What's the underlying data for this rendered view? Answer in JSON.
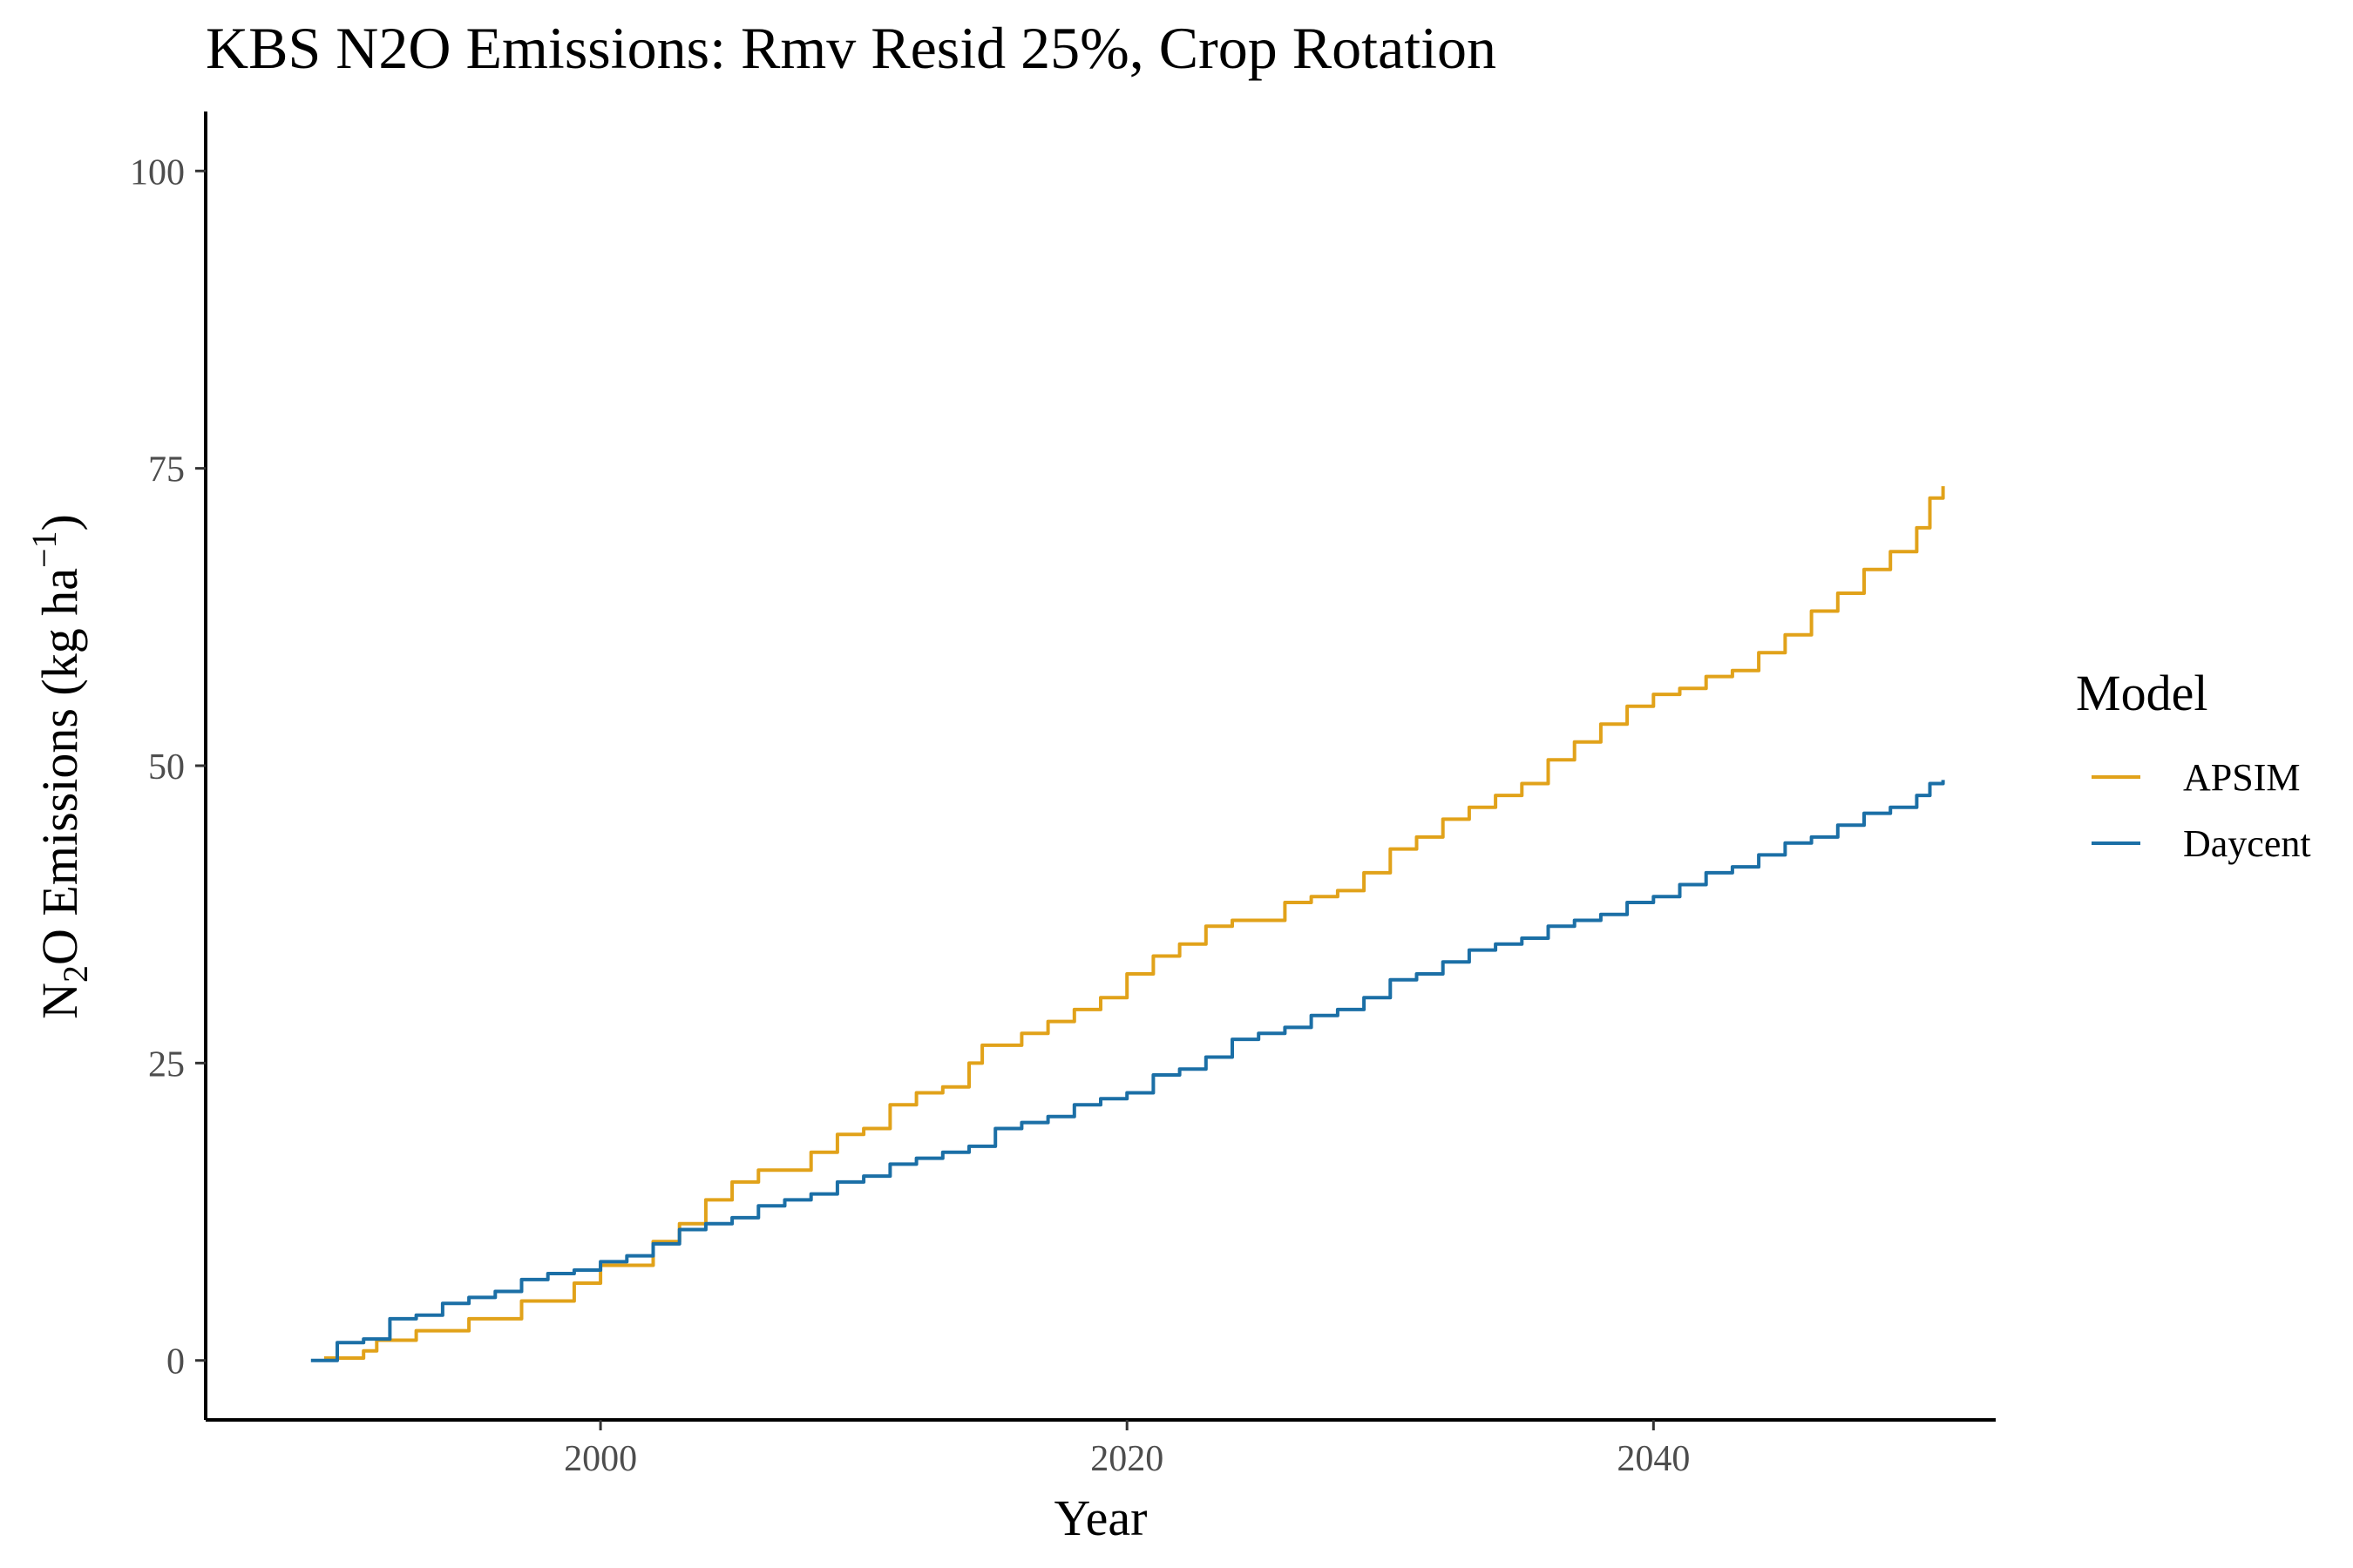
{
  "chart_data": {
    "type": "line",
    "title": "KBS N2O Emissions:  Rmv Resid 25%, Crop Rotation",
    "xlabel": "Year",
    "ylabel": {
      "base": "N",
      "sub": "2",
      "rest": "O Emissions (kg ha",
      "sup": "−1",
      "close": ")"
    },
    "xlim": [
      1985,
      2053
    ],
    "ylim": [
      -5,
      105
    ],
    "xticks": [
      2000,
      2020,
      2040
    ],
    "yticks": [
      0,
      25,
      50,
      75,
      100
    ],
    "grid": false,
    "legend_title": "Model",
    "legend_position": "right",
    "colors": {
      "APSIM": "#E1A21A",
      "Daycent": "#1B6FA6"
    },
    "series": [
      {
        "name": "APSIM",
        "x": [
          1989.5,
          1991,
          1991.5,
          1993,
          1995,
          1997,
          1999,
          2000,
          2002,
          2003,
          2004,
          2005,
          2006,
          2008,
          2009,
          2010,
          2011,
          2012,
          2013,
          2014,
          2014.5,
          2016,
          2017,
          2018,
          2019,
          2020,
          2021,
          2022,
          2023,
          2024,
          2026,
          2027,
          2028,
          2029,
          2030,
          2031,
          2032,
          2033,
          2034,
          2035,
          2036,
          2037,
          2038,
          2039,
          2040,
          2041,
          2042,
          2043,
          2044,
          2045,
          2046,
          2047,
          2048,
          2049,
          2050,
          2050.5,
          2051
        ],
        "y": [
          0.2,
          0.8,
          1.7,
          2.5,
          3.5,
          5.0,
          6.5,
          8.0,
          10.0,
          11.5,
          13.5,
          15.0,
          16.0,
          17.5,
          19.0,
          19.5,
          21.5,
          22.5,
          23.0,
          25.0,
          26.5,
          27.5,
          28.5,
          29.5,
          30.5,
          32.5,
          34.0,
          35.0,
          36.5,
          37.0,
          38.5,
          39.0,
          39.5,
          41.0,
          43.0,
          44.0,
          45.5,
          46.5,
          47.5,
          48.5,
          50.5,
          52.0,
          53.5,
          55.0,
          56.0,
          56.5,
          57.5,
          58.0,
          59.5,
          61.0,
          63.0,
          64.5,
          66.5,
          68.0,
          70.0,
          72.5,
          73.5
        ]
      },
      {
        "name": "Daycent",
        "x": [
          1989,
          1989.5,
          1990,
          1991,
          1992,
          1993,
          1994,
          1995,
          1996,
          1997,
          1998,
          1999,
          2000,
          2001,
          2002,
          2003,
          2004,
          2005,
          2006,
          2007,
          2008,
          2009,
          2010,
          2011,
          2012,
          2013,
          2014,
          2015,
          2016,
          2017,
          2018,
          2019,
          2020,
          2021,
          2022,
          2023,
          2024,
          2025,
          2026,
          2027,
          2028,
          2029,
          2030,
          2031,
          2032,
          2033,
          2034,
          2035,
          2036,
          2037,
          2038,
          2039,
          2040,
          2041,
          2042,
          2043,
          2044,
          2045,
          2046,
          2047,
          2048,
          2049,
          2050,
          2050.5,
          2051
        ],
        "y": [
          0.0,
          0.0,
          1.5,
          1.8,
          3.5,
          3.8,
          4.8,
          5.3,
          5.8,
          6.8,
          7.3,
          7.6,
          8.3,
          8.8,
          9.8,
          11.0,
          11.5,
          12.0,
          13.0,
          13.5,
          14.0,
          15.0,
          15.5,
          16.5,
          17.0,
          17.5,
          18.0,
          19.5,
          20.0,
          20.5,
          21.5,
          22.0,
          22.5,
          24.0,
          24.5,
          25.5,
          27.0,
          27.5,
          28.0,
          29.0,
          29.5,
          30.5,
          32.0,
          32.5,
          33.5,
          34.5,
          35.0,
          35.5,
          36.5,
          37.0,
          37.5,
          38.5,
          39.0,
          40.0,
          41.0,
          41.5,
          42.5,
          43.5,
          44.0,
          45.0,
          46.0,
          46.5,
          47.5,
          48.5,
          48.8
        ]
      }
    ]
  }
}
